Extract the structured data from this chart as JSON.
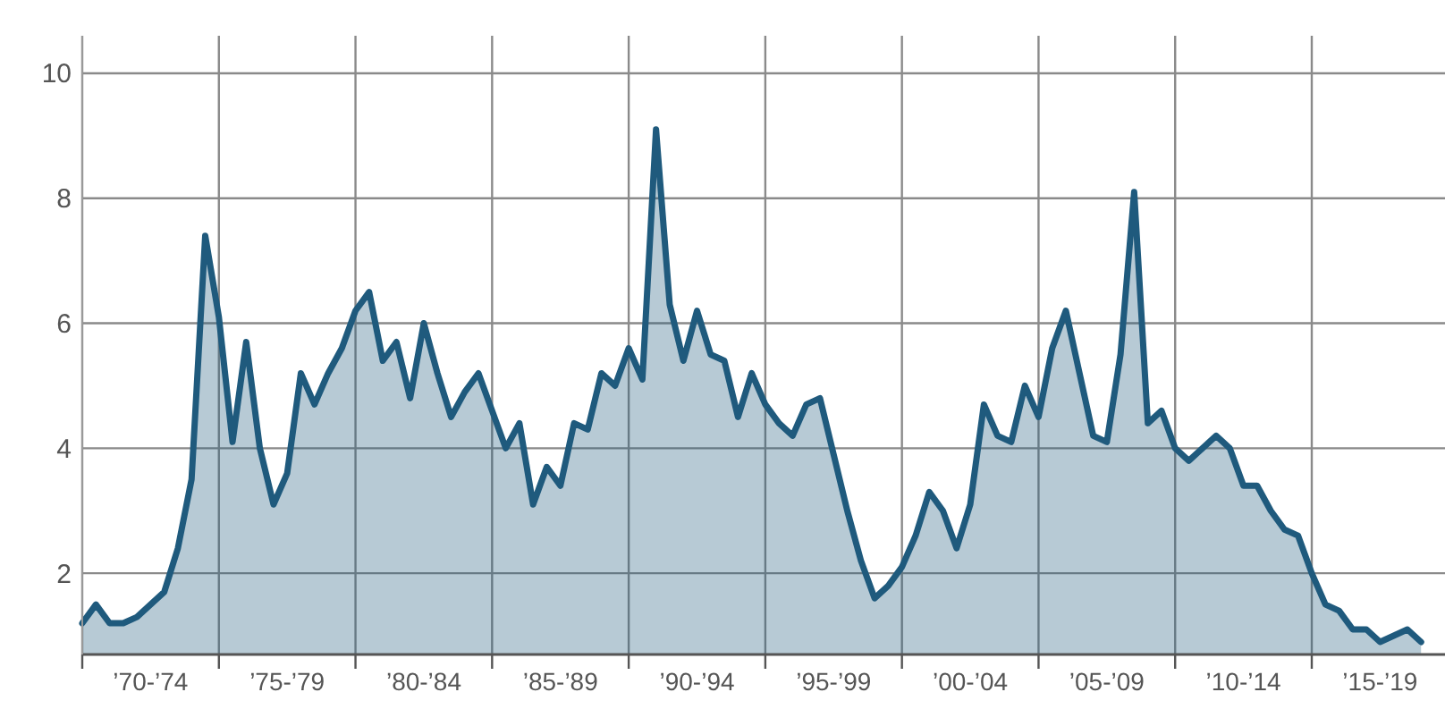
{
  "chart_data": {
    "type": "area",
    "categories": [
      null,
      null,
      null,
      null,
      null,
      "’70-’74",
      null,
      null,
      null,
      null,
      null,
      null,
      null,
      null,
      null,
      "’75-’79",
      null,
      null,
      null,
      null,
      null,
      null,
      null,
      null,
      null,
      "’80-’84",
      null,
      null,
      null,
      null,
      null,
      null,
      null,
      null,
      null,
      "’85-’89",
      null,
      null,
      null,
      null,
      null,
      null,
      null,
      null,
      null,
      "’90-’94",
      null,
      null,
      null,
      null,
      null,
      null,
      null,
      null,
      null,
      "’95-’99",
      null,
      null,
      null,
      null,
      null,
      null,
      null,
      null,
      null,
      "’00-’04",
      null,
      null,
      null,
      null,
      null,
      null,
      null,
      null,
      null,
      "’05-’09",
      null,
      null,
      null,
      null,
      null,
      null,
      null,
      null,
      null,
      "’10-’14",
      null,
      null,
      null,
      null,
      null,
      null,
      null,
      null,
      null,
      "’15-’19",
      null,
      null,
      null
    ],
    "series": [
      {
        "color": "#1f5a7d",
        "values": [
          1.2,
          1.5,
          1.2,
          1.2,
          1.3,
          1.5,
          1.7,
          2.4,
          3.5,
          7.4,
          6.1,
          4.1,
          5.7,
          4.0,
          3.1,
          3.6,
          5.2,
          4.7,
          5.2,
          5.6,
          6.2,
          6.5,
          5.4,
          5.7,
          4.8,
          6.0,
          5.2,
          4.5,
          4.9,
          5.2,
          4.6,
          4.0,
          4.4,
          3.1,
          3.7,
          3.4,
          4.4,
          4.3,
          5.2,
          5.0,
          5.6,
          5.1,
          9.1,
          6.3,
          5.4,
          6.2,
          5.5,
          5.4,
          4.5,
          5.2,
          4.7,
          4.4,
          4.2,
          4.7,
          4.8,
          3.9,
          3.0,
          2.2,
          1.6,
          1.8,
          2.1,
          2.6,
          3.3,
          3.0,
          2.4,
          3.1,
          4.7,
          4.2,
          4.1,
          5.0,
          4.5,
          5.6,
          6.2,
          5.2,
          4.2,
          4.1,
          5.5,
          8.1,
          4.4,
          4.6,
          4.0,
          3.8,
          4.0,
          4.2,
          4.0,
          3.4,
          3.4,
          3.0,
          2.7,
          2.6,
          2.0,
          1.5,
          1.4,
          1.1,
          1.1,
          0.9,
          1.0,
          1.1,
          0.9
        ]
      }
    ],
    "ylim": [
      0.7,
      10.6
    ],
    "yticks": [
      2,
      4,
      6,
      8,
      10
    ],
    "grid": true
  }
}
